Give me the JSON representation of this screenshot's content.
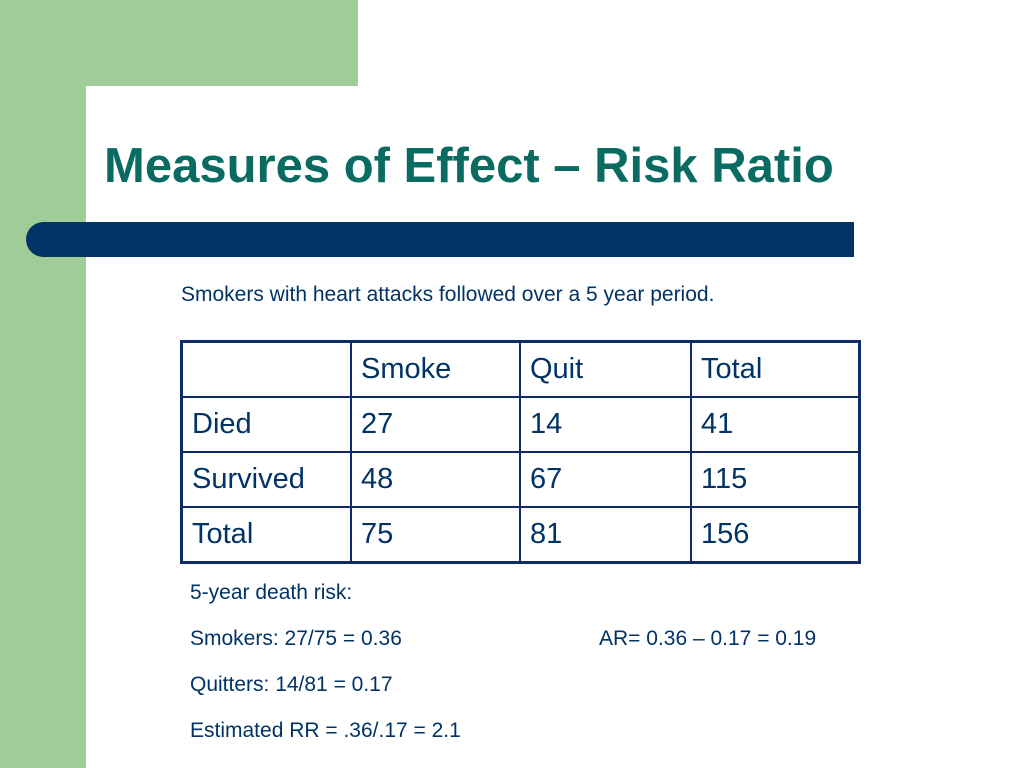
{
  "slide": {
    "title": "Measures of Effect – Risk Ratio",
    "subtitle": "Smokers with heart attacks followed over a 5 year period."
  },
  "table": {
    "headers": [
      "",
      "Smoke",
      "Quit",
      "Total"
    ],
    "rows": [
      [
        "Died",
        "27",
        "14",
        "41"
      ],
      [
        "Survived",
        "48",
        "67",
        "115"
      ],
      [
        "Total",
        "75",
        "81",
        "156"
      ]
    ]
  },
  "notes": {
    "risk_heading": "5-year death risk:",
    "smokers": "Smokers:  27/75 = 0.36",
    "quitters": "Quitters: 14/81 = 0.17",
    "estimated_rr": "Estimated RR = .36/.17 = 2.1",
    "ar": "AR= 0.36 – 0.17 = 0.19"
  },
  "colors": {
    "green_accent": "#a0cc98",
    "title_teal": "#096b61",
    "navy": "#003366"
  }
}
